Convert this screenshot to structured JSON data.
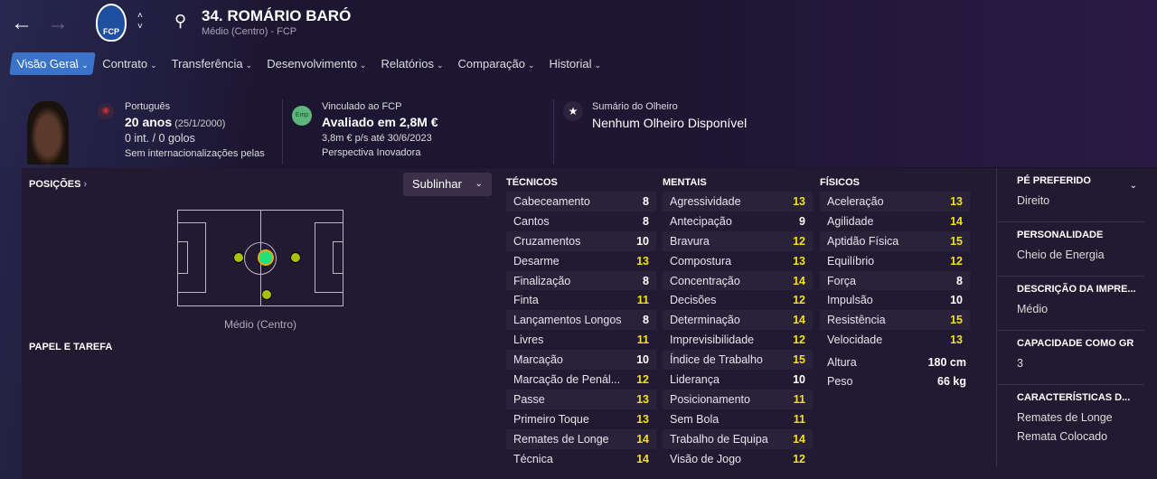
{
  "header": {
    "title": "34. ROMÁRIO BARÓ",
    "subtitle": "Médio (Centro) - FCP",
    "club_crest_text": "FCP",
    "crest_color": "#1f4fa0"
  },
  "tabs": [
    {
      "label": "Visão Geral",
      "active": true
    },
    {
      "label": "Contrato"
    },
    {
      "label": "Transferência"
    },
    {
      "label": "Desenvolvimento"
    },
    {
      "label": "Relatórios"
    },
    {
      "label": "Comparação"
    },
    {
      "label": "Historial"
    }
  ],
  "profile": {
    "nationality": "Português",
    "age": "20 anos",
    "dob": "(25/1/2000)",
    "caps": "0 int. / 0 golos",
    "intl_note": "Sem internacionalizações pelas"
  },
  "contract": {
    "badge": "Emp",
    "linked": "Vinculado ao FCP",
    "value": "Avaliado em 2,8M €",
    "wage": "3,8m € p/s até 30/6/2023",
    "prospect": "Perspectiva Inovadora"
  },
  "scout": {
    "label": "Sumário do Olheiro",
    "value": "Nenhum Olheiro Disponível"
  },
  "positions": {
    "title": "POSIÇÕES",
    "highlight_button": "Sublinhar",
    "position_name": "Médio (Centro)",
    "role_title": "PAPEL E TAREFA"
  },
  "colors": {
    "accent": "#3b73c8",
    "high_attr": "#f0e020",
    "natural_pos": "#22e07a",
    "accomplished_pos": "#a8c010"
  },
  "attributes": {
    "technical": {
      "title": "TÉCNICOS",
      "items": [
        [
          "Cabeceamento",
          8
        ],
        [
          "Cantos",
          8
        ],
        [
          "Cruzamentos",
          10
        ],
        [
          "Desarme",
          13
        ],
        [
          "Finalização",
          8
        ],
        [
          "Finta",
          11
        ],
        [
          "Lançamentos Longos",
          8
        ],
        [
          "Livres",
          11
        ],
        [
          "Marcação",
          10
        ],
        [
          "Marcação de Penál...",
          12
        ],
        [
          "Passe",
          13
        ],
        [
          "Primeiro Toque",
          13
        ],
        [
          "Remates de Longe",
          14
        ],
        [
          "Técnica",
          14
        ]
      ]
    },
    "mental": {
      "title": "MENTAIS",
      "items": [
        [
          "Agressividade",
          13
        ],
        [
          "Antecipação",
          9
        ],
        [
          "Bravura",
          12
        ],
        [
          "Compostura",
          13
        ],
        [
          "Concentração",
          14
        ],
        [
          "Decisões",
          12
        ],
        [
          "Determinação",
          14
        ],
        [
          "Imprevisibilidade",
          12
        ],
        [
          "Índice de Trabalho",
          15
        ],
        [
          "Liderança",
          10
        ],
        [
          "Posicionamento",
          11
        ],
        [
          "Sem Bola",
          11
        ],
        [
          "Trabalho de Equipa",
          14
        ],
        [
          "Visão de Jogo",
          12
        ]
      ]
    },
    "physical": {
      "title": "FÍSICOS",
      "items": [
        [
          "Aceleração",
          13
        ],
        [
          "Agilidade",
          14
        ],
        [
          "Aptidão Física",
          15
        ],
        [
          "Equilíbrio",
          12
        ],
        [
          "Força",
          8
        ],
        [
          "Impulsão",
          10
        ],
        [
          "Resistência",
          15
        ],
        [
          "Velocidade",
          13
        ]
      ]
    }
  },
  "body": {
    "height_label": "Altura",
    "height": "180 cm",
    "weight_label": "Peso",
    "weight": "66 kg"
  },
  "side": [
    {
      "title": "PÉ PREFERIDO",
      "values": [
        "Direito"
      ]
    },
    {
      "title": "PERSONALIDADE",
      "values": [
        "Cheio de Energia"
      ]
    },
    {
      "title": "DESCRIÇÃO DA IMPRE...",
      "values": [
        "Médio"
      ]
    },
    {
      "title": "CAPACIDADE COMO GR",
      "values": [
        "3"
      ]
    },
    {
      "title": "CARACTERÍSTICAS D...",
      "values": [
        "Remates de Longe",
        "Remata Colocado"
      ]
    }
  ]
}
